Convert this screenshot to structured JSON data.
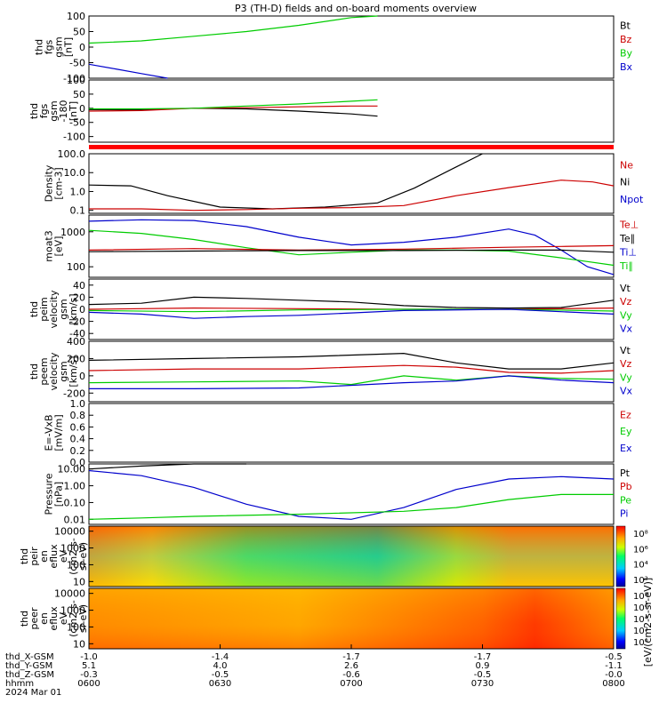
{
  "title": "P3 (TH-D) fields and on-board moments overview",
  "colors": {
    "black": "#000000",
    "red": "#cc0000",
    "green": "#00cc00",
    "blue": "#0000cc",
    "bar": "#ff0000"
  },
  "chart_data": [
    {
      "type": "line",
      "ylabel": [
        "thd",
        "fgs",
        "gsm",
        "[nT]"
      ],
      "ylim": [
        -100,
        100
      ],
      "yticks": [
        {
          "v": 100,
          "label": "100"
        },
        {
          "v": 50,
          "label": "50"
        },
        {
          "v": 0,
          "label": "0"
        },
        {
          "v": -50,
          "label": "-50"
        },
        {
          "v": -100,
          "label": "-100"
        }
      ],
      "legend": [
        {
          "label": "Bt",
          "color": "black"
        },
        {
          "label": "Bz",
          "color": "red"
        },
        {
          "label": "By",
          "color": "green"
        },
        {
          "label": "Bx",
          "color": "blue"
        }
      ],
      "series": [
        {
          "name": "By",
          "color": "green",
          "x": [
            0,
            0.1,
            0.2,
            0.3,
            0.4,
            0.5,
            0.55,
            0.56
          ],
          "y": [
            13,
            20,
            35,
            50,
            70,
            95,
            100,
            null
          ]
        },
        {
          "name": "Bx",
          "color": "blue",
          "x": [
            0,
            0.05,
            0.1,
            0.15
          ],
          "y": [
            -55,
            -70,
            -85,
            -100
          ]
        }
      ]
    },
    {
      "type": "line",
      "ylabel": [
        "thd",
        "fgs",
        "gsm",
        "-180",
        "[nT]"
      ],
      "ylim": [
        -120,
        100
      ],
      "yticks": [
        {
          "v": 100,
          "label": "100"
        },
        {
          "v": 50,
          "label": "50"
        },
        {
          "v": 0,
          "label": "0"
        },
        {
          "v": -50,
          "label": "-50"
        },
        {
          "v": -100,
          "label": "-100"
        }
      ],
      "series": [
        {
          "name": "Bx",
          "color": "black",
          "x": [
            0,
            0.1,
            0.2,
            0.3,
            0.4,
            0.5,
            0.55
          ],
          "y": [
            -5,
            -5,
            0,
            -2,
            -10,
            -20,
            -28
          ]
        },
        {
          "name": "Bz",
          "color": "red",
          "x": [
            0,
            0.1,
            0.2,
            0.3,
            0.4,
            0.5,
            0.55
          ],
          "y": [
            -10,
            -8,
            0,
            2,
            5,
            8,
            8
          ]
        },
        {
          "name": "By",
          "color": "green",
          "x": [
            0,
            0.1,
            0.2,
            0.3,
            0.4,
            0.5,
            0.55
          ],
          "y": [
            -2,
            -2,
            0,
            8,
            15,
            25,
            30
          ]
        }
      ]
    },
    {
      "type": "line",
      "ylabel": [
        "Density",
        "[cm-3]"
      ],
      "log": true,
      "ylim": [
        0.07,
        100
      ],
      "yticks": [
        {
          "v": 100,
          "label": "100.0"
        },
        {
          "v": 10,
          "label": "10.0"
        },
        {
          "v": 1,
          "label": "1.0"
        },
        {
          "v": 0.1,
          "label": "0.1"
        }
      ],
      "legend": [
        {
          "label": "Ne",
          "color": "red"
        },
        {
          "label": "Ni",
          "color": "black"
        },
        {
          "label": "Npot",
          "color": "blue"
        }
      ],
      "series": [
        {
          "name": "Ni",
          "color": "black",
          "x": [
            0,
            0.08,
            0.15,
            0.25,
            0.35,
            0.45,
            0.55,
            0.62,
            0.7,
            0.75
          ],
          "y": [
            2.2,
            2.0,
            0.6,
            0.15,
            0.12,
            0.15,
            0.25,
            1.5,
            20,
            100
          ]
        },
        {
          "name": "Ne",
          "color": "red",
          "x": [
            0,
            0.1,
            0.2,
            0.3,
            0.4,
            0.5,
            0.6,
            0.7,
            0.8,
            0.9,
            0.96,
            1
          ],
          "y": [
            0.12,
            0.12,
            0.1,
            0.11,
            0.13,
            0.14,
            0.18,
            0.6,
            1.6,
            4,
            3.2,
            2
          ]
        }
      ]
    },
    {
      "type": "line",
      "ylabel": [
        "moat3",
        "[eV]"
      ],
      "log": true,
      "ylim": [
        50,
        3000
      ],
      "yticks": [
        {
          "v": 1000,
          "label": "1000"
        },
        {
          "v": 100,
          "label": "100"
        }
      ],
      "legend": [
        {
          "label": "Te⊥",
          "color": "red"
        },
        {
          "label": "Te∥",
          "color": "black"
        },
        {
          "label": "Ti⊥",
          "color": "blue"
        },
        {
          "label": "Ti∥",
          "color": "green"
        }
      ],
      "series": [
        {
          "name": "Ti⊥",
          "color": "blue",
          "x": [
            0,
            0.1,
            0.2,
            0.3,
            0.4,
            0.5,
            0.6,
            0.7,
            0.8,
            0.85,
            0.9,
            0.95,
            1
          ],
          "y": [
            2000,
            2200,
            2100,
            1400,
            700,
            420,
            500,
            700,
            1200,
            800,
            300,
            100,
            60
          ]
        },
        {
          "name": "Ti∥",
          "color": "green",
          "x": [
            0,
            0.1,
            0.2,
            0.3,
            0.4,
            0.5,
            0.6,
            0.7,
            0.8,
            0.9,
            1
          ],
          "y": [
            1100,
            900,
            600,
            350,
            220,
            260,
            300,
            300,
            280,
            180,
            110
          ]
        },
        {
          "name": "Te⊥",
          "color": "red",
          "x": [
            0,
            0.2,
            0.4,
            0.6,
            0.8,
            0.9,
            1
          ],
          "y": [
            300,
            330,
            300,
            320,
            360,
            380,
            400
          ]
        },
        {
          "name": "Te∥",
          "color": "black",
          "x": [
            0,
            0.2,
            0.4,
            0.6,
            0.8,
            0.9,
            1
          ],
          "y": [
            270,
            280,
            290,
            290,
            300,
            300,
            260
          ]
        }
      ]
    },
    {
      "type": "line",
      "ylabel": [
        "thd",
        "peim",
        "velocity",
        "gsm",
        "[km/s]"
      ],
      "ylim": [
        -50,
        50
      ],
      "yticks": [
        {
          "v": 40,
          "label": "40"
        },
        {
          "v": 20,
          "label": "20"
        },
        {
          "v": 0,
          "label": "0"
        },
        {
          "v": -20,
          "label": "-20"
        },
        {
          "v": -40,
          "label": "-40"
        }
      ],
      "legend": [
        {
          "label": "Vt",
          "color": "black"
        },
        {
          "label": "Vz",
          "color": "red"
        },
        {
          "label": "Vy",
          "color": "green"
        },
        {
          "label": "Vx",
          "color": "blue"
        }
      ],
      "series": [
        {
          "name": "Vt",
          "color": "black",
          "x": [
            0,
            0.1,
            0.2,
            0.3,
            0.4,
            0.5,
            0.6,
            0.7,
            0.8,
            0.9,
            1
          ],
          "y": [
            8,
            10,
            20,
            18,
            15,
            12,
            6,
            3,
            2,
            3,
            15
          ]
        },
        {
          "name": "Vz",
          "color": "red",
          "x": [
            0,
            0.2,
            0.4,
            0.6,
            0.8,
            1
          ],
          "y": [
            0,
            2,
            1,
            0,
            0,
            2
          ]
        },
        {
          "name": "Vy",
          "color": "green",
          "x": [
            0,
            0.2,
            0.4,
            0.6,
            0.8,
            1
          ],
          "y": [
            -2,
            -4,
            -1,
            0,
            0,
            -3
          ]
        },
        {
          "name": "Vx",
          "color": "blue",
          "x": [
            0,
            0.1,
            0.2,
            0.3,
            0.4,
            0.5,
            0.6,
            0.8,
            1
          ],
          "y": [
            -5,
            -8,
            -15,
            -12,
            -10,
            -6,
            -2,
            0,
            -8
          ]
        }
      ]
    },
    {
      "type": "line",
      "ylabel": [
        "thd",
        "peem",
        "velocity",
        "gsm",
        "[km/s]"
      ],
      "ylim": [
        -300,
        400
      ],
      "yticks": [
        {
          "v": 400,
          "label": "400"
        },
        {
          "v": 200,
          "label": "200"
        },
        {
          "v": 0,
          "label": "0"
        },
        {
          "v": -200,
          "label": "-200"
        }
      ],
      "legend": [
        {
          "label": "Vt",
          "color": "black"
        },
        {
          "label": "Vz",
          "color": "red"
        },
        {
          "label": "Vy",
          "color": "green"
        },
        {
          "label": "Vx",
          "color": "blue"
        }
      ],
      "series": [
        {
          "name": "Vt",
          "color": "black",
          "x": [
            0,
            0.2,
            0.4,
            0.6,
            0.7,
            0.8,
            0.9,
            1
          ],
          "y": [
            180,
            200,
            220,
            260,
            150,
            80,
            80,
            150
          ]
        },
        {
          "name": "Vz",
          "color": "red",
          "x": [
            0,
            0.2,
            0.4,
            0.6,
            0.7,
            0.8,
            0.9,
            1
          ],
          "y": [
            60,
            80,
            80,
            120,
            100,
            40,
            30,
            60
          ]
        },
        {
          "name": "Vy",
          "color": "green",
          "x": [
            0,
            0.2,
            0.4,
            0.5,
            0.6,
            0.7,
            0.8,
            0.9,
            1
          ],
          "y": [
            -80,
            -70,
            -60,
            -100,
            0,
            -50,
            0,
            -30,
            -40
          ]
        },
        {
          "name": "Vx",
          "color": "blue",
          "x": [
            0,
            0.2,
            0.4,
            0.6,
            0.7,
            0.8,
            0.9,
            1
          ],
          "y": [
            -150,
            -150,
            -140,
            -80,
            -60,
            0,
            -50,
            -80
          ]
        }
      ]
    },
    {
      "type": "line",
      "ylabel": [
        "E=-VxB",
        "[mV/m]"
      ],
      "ylim": [
        0,
        1
      ],
      "yticks": [
        {
          "v": 1,
          "label": "1.0"
        },
        {
          "v": 0.8,
          "label": "0.8"
        },
        {
          "v": 0.6,
          "label": "0.6"
        },
        {
          "v": 0.4,
          "label": "0.4"
        },
        {
          "v": 0.2,
          "label": "0.2"
        },
        {
          "v": 0,
          "label": "0.0"
        }
      ],
      "legend": [
        {
          "label": "Ez",
          "color": "red"
        },
        {
          "label": "Ey",
          "color": "green"
        },
        {
          "label": "Ex",
          "color": "blue"
        }
      ],
      "series": []
    },
    {
      "type": "line",
      "ylabel": [
        "Pressure",
        "[nPa]"
      ],
      "log": true,
      "ylim": [
        0.005,
        20
      ],
      "yticks": [
        {
          "v": 10,
          "label": "10.00"
        },
        {
          "v": 1,
          "label": "1.00"
        },
        {
          "v": 0.1,
          "label": "0.10"
        },
        {
          "v": 0.01,
          "label": "0.01"
        }
      ],
      "legend": [
        {
          "label": "Pt",
          "color": "black"
        },
        {
          "label": "Pb",
          "color": "red"
        },
        {
          "label": "Pe",
          "color": "green"
        },
        {
          "label": "Pi",
          "color": "blue"
        }
      ],
      "series": [
        {
          "name": "Pt",
          "color": "black",
          "x": [
            0,
            0.1,
            0.2,
            0.3
          ],
          "y": [
            10,
            15,
            20,
            25
          ]
        },
        {
          "name": "Pi",
          "color": "blue",
          "x": [
            0,
            0.1,
            0.2,
            0.3,
            0.4,
            0.5,
            0.6,
            0.7,
            0.8,
            0.9,
            1
          ],
          "y": [
            8,
            4,
            0.8,
            0.08,
            0.015,
            0.01,
            0.05,
            0.6,
            2.5,
            3.5,
            2.5
          ]
        },
        {
          "name": "Pe",
          "color": "green",
          "x": [
            0,
            0.1,
            0.2,
            0.4,
            0.6,
            0.7,
            0.8,
            0.9,
            1
          ],
          "y": [
            0.01,
            0.012,
            0.015,
            0.02,
            0.03,
            0.05,
            0.15,
            0.3,
            0.3
          ]
        }
      ]
    },
    {
      "type": "heatmap",
      "ylabel": [
        "thd",
        "peir",
        "en",
        "eflux",
        "eV",
        "(cm2-s-",
        "sr-eV)"
      ],
      "log": true,
      "ylim": [
        5,
        20000
      ],
      "yticks": [
        {
          "v": 10000,
          "label": "10000"
        },
        {
          "v": 1000,
          "label": "1000"
        },
        {
          "v": 100,
          "label": "100"
        },
        {
          "v": 10,
          "label": "10"
        }
      ],
      "colorbar": {
        "ticks": [
          "10⁸",
          "10⁶",
          "10⁴",
          "10²"
        ]
      }
    },
    {
      "type": "heatmap",
      "ylabel": [
        "thd",
        "peer",
        "en",
        "eflux",
        "eV",
        "(cm2-s-",
        "sr-eV)"
      ],
      "log": true,
      "ylim": [
        5,
        20000
      ],
      "yticks": [
        {
          "v": 10000,
          "label": "10000"
        },
        {
          "v": 1000,
          "label": "1000"
        },
        {
          "v": 100,
          "label": "100"
        },
        {
          "v": 10,
          "label": "10"
        }
      ],
      "colorbar": {
        "ticks": [
          "10⁸",
          "10⁶",
          "10⁴",
          "10²",
          "10⁰"
        ]
      }
    }
  ],
  "colorbar_label": "[eV/(cm2-s-sr-eV)] (All Qs)]",
  "colorbar_label2": "[eV/(cm2-s-sr-eV)]",
  "xaxis": {
    "row_labels": [
      "thd_X-GSM",
      "thd_Y-GSM",
      "thd_Z-GSM",
      "hhmm",
      "2024 Mar 01"
    ],
    "ticks": [
      {
        "pos": 0,
        "vals": [
          "-1.0",
          "5.1",
          "-0.3",
          "0600"
        ]
      },
      {
        "pos": 0.25,
        "vals": [
          "-1.4",
          "4.0",
          "-0.5",
          "0630"
        ]
      },
      {
        "pos": 0.5,
        "vals": [
          "-1.7",
          "2.6",
          "-0.6",
          "0700"
        ]
      },
      {
        "pos": 0.75,
        "vals": [
          "-1.7",
          "0.9",
          "-0.5",
          "0730"
        ]
      },
      {
        "pos": 1,
        "vals": [
          "-0.5",
          "-1.1",
          "-0.0",
          "0800"
        ]
      }
    ]
  }
}
